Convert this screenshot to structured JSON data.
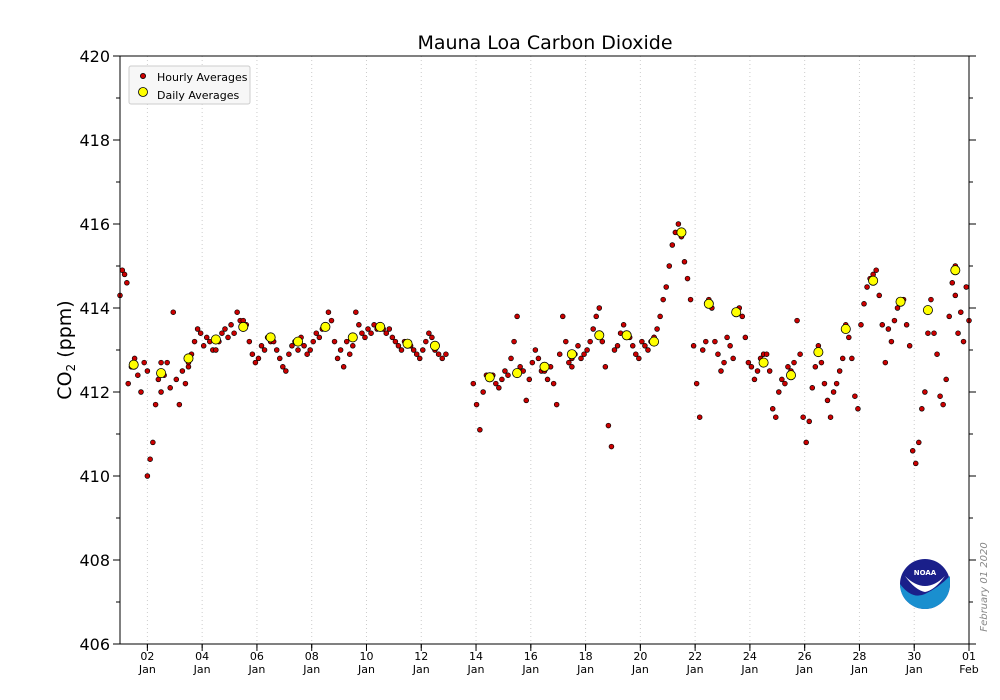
{
  "chart_data": {
    "type": "scatter",
    "title": "Mauna Loa Carbon Dioxide",
    "ylabel_main": "CO",
    "ylabel_sub": "2",
    "ylabel_unit": " (ppm)",
    "ylim": [
      406,
      420
    ],
    "xlim": [
      1,
      32
    ],
    "yticks": [
      406,
      408,
      410,
      412,
      414,
      416,
      418,
      420
    ],
    "xticks": [
      {
        "x": 2,
        "day": "02",
        "month": "Jan"
      },
      {
        "x": 4,
        "day": "04",
        "month": "Jan"
      },
      {
        "x": 6,
        "day": "06",
        "month": "Jan"
      },
      {
        "x": 8,
        "day": "08",
        "month": "Jan"
      },
      {
        "x": 10,
        "day": "10",
        "month": "Jan"
      },
      {
        "x": 12,
        "day": "12",
        "month": "Jan"
      },
      {
        "x": 14,
        "day": "14",
        "month": "Jan"
      },
      {
        "x": 16,
        "day": "16",
        "month": "Jan"
      },
      {
        "x": 18,
        "day": "18",
        "month": "Jan"
      },
      {
        "x": 20,
        "day": "20",
        "month": "Jan"
      },
      {
        "x": 22,
        "day": "22",
        "month": "Jan"
      },
      {
        "x": 24,
        "day": "24",
        "month": "Jan"
      },
      {
        "x": 26,
        "day": "26",
        "month": "Jan"
      },
      {
        "x": 28,
        "day": "28",
        "month": "Jan"
      },
      {
        "x": 30,
        "day": "30",
        "month": "Jan"
      },
      {
        "x": 32,
        "day": "01",
        "month": "Feb"
      }
    ],
    "legend": [
      {
        "name": "Hourly Averages",
        "color": "#cc0000"
      },
      {
        "name": "Daily Averages",
        "color": "#ffff00"
      }
    ],
    "legend_position": "top-left",
    "daily_averages": {
      "x": [
        1.5,
        2.5,
        3.5,
        4.5,
        5.5,
        6.5,
        7.5,
        8.5,
        9.5,
        10.5,
        11.5,
        12.5,
        14.5,
        15.5,
        16.5,
        17.5,
        18.5,
        19.5,
        20.5,
        21.5,
        22.5,
        23.5,
        24.5,
        25.5,
        26.5,
        27.5,
        28.5,
        29.5,
        30.5,
        31.5
      ],
      "y": [
        412.65,
        412.45,
        412.8,
        413.25,
        413.55,
        413.3,
        413.2,
        413.55,
        413.3,
        413.55,
        413.15,
        413.1,
        412.35,
        412.45,
        412.6,
        412.9,
        413.35,
        413.35,
        413.2,
        415.8,
        414.1,
        413.9,
        412.7,
        412.4,
        412.95,
        413.5,
        414.65,
        414.15,
        413.95,
        414.9
      ]
    },
    "hourly_series": [
      {
        "start": 1.0,
        "end": 1.25,
        "y": [
          414.3,
          414.9,
          414.8,
          414.6
        ]
      },
      {
        "start": 1.3,
        "end": 2.0,
        "y": [
          412.2,
          412.6,
          412.8,
          412.4,
          412.0,
          412.7,
          412.5
        ]
      },
      {
        "start": 2.0,
        "end": 2.5,
        "y": [
          410.0,
          410.4,
          410.8,
          411.7,
          412.3,
          412.7
        ]
      },
      {
        "start": 2.5,
        "end": 3.5,
        "y": [
          412.0,
          412.4,
          412.7,
          412.1,
          413.9,
          412.3,
          411.7,
          412.5,
          412.2,
          412.6
        ]
      },
      {
        "start": 3.5,
        "end": 4.5,
        "y": [
          412.7,
          412.9,
          413.2,
          413.5,
          413.4,
          413.1,
          413.3,
          413.2,
          413.0,
          413.3
        ]
      },
      {
        "start": 4.5,
        "end": 5.5,
        "y": [
          413.0,
          413.2,
          413.4,
          413.5,
          413.3,
          413.6,
          413.4,
          413.9,
          413.7,
          413.5
        ]
      },
      {
        "start": 5.5,
        "end": 6.5,
        "y": [
          413.7,
          413.6,
          413.2,
          412.9,
          412.7,
          412.8,
          413.1,
          413.0,
          413.3,
          413.2
        ]
      },
      {
        "start": 6.5,
        "end": 7.5,
        "y": [
          413.3,
          413.2,
          413.0,
          412.8,
          412.6,
          412.5,
          412.9,
          413.1,
          413.2,
          413.0
        ]
      },
      {
        "start": 7.5,
        "end": 8.5,
        "y": [
          413.2,
          413.3,
          413.1,
          412.9,
          413.0,
          413.2,
          413.4,
          413.3,
          413.5,
          413.6
        ]
      },
      {
        "start": 8.5,
        "end": 9.5,
        "y": [
          413.6,
          413.9,
          413.7,
          413.2,
          412.8,
          413.0,
          412.6,
          413.2,
          412.9,
          413.1
        ]
      },
      {
        "start": 9.5,
        "end": 10.5,
        "y": [
          413.3,
          413.9,
          413.6,
          413.4,
          413.3,
          413.5,
          413.4,
          413.6,
          413.5,
          413.6
        ]
      },
      {
        "start": 10.5,
        "end": 11.5,
        "y": [
          413.6,
          413.5,
          413.4,
          413.5,
          413.3,
          413.2,
          413.1,
          413.0,
          413.2,
          413.1
        ]
      },
      {
        "start": 11.5,
        "end": 12.5,
        "y": [
          413.2,
          413.1,
          413.0,
          412.9,
          412.8,
          413.0,
          413.2,
          413.4,
          413.3,
          413.1
        ]
      },
      {
        "start": 12.5,
        "end": 12.9,
        "y": [
          413.0,
          412.9,
          412.8,
          412.9
        ]
      },
      {
        "start": 13.9,
        "end": 14.5,
        "y": [
          412.2,
          411.7,
          411.1,
          412.0,
          412.4,
          412.3
        ]
      },
      {
        "start": 14.5,
        "end": 15.5,
        "y": [
          412.3,
          412.4,
          412.2,
          412.1,
          412.3,
          412.5,
          412.4,
          412.8,
          413.2,
          413.8
        ]
      },
      {
        "start": 15.5,
        "end": 16.5,
        "y": [
          412.4,
          412.6,
          412.5,
          411.8,
          412.3,
          412.7,
          413.0,
          412.8,
          412.5,
          412.6
        ]
      },
      {
        "start": 16.5,
        "end": 17.5,
        "y": [
          412.5,
          412.3,
          412.6,
          412.2,
          411.7,
          412.9,
          413.8,
          413.2,
          412.7,
          412.8
        ]
      },
      {
        "start": 17.5,
        "end": 18.5,
        "y": [
          412.6,
          412.9,
          413.1,
          412.8,
          412.9,
          413.0,
          413.2,
          413.5,
          413.8,
          414.0
        ]
      },
      {
        "start": 18.5,
        "end": 19.5,
        "y": [
          413.4,
          413.2,
          412.6,
          411.2,
          410.7,
          413.0,
          413.1,
          413.4,
          413.6,
          413.3
        ]
      },
      {
        "start": 19.5,
        "end": 20.5,
        "y": [
          413.4,
          413.3,
          413.1,
          412.9,
          412.8,
          413.2,
          413.1,
          413.0,
          413.2,
          413.3
        ]
      },
      {
        "start": 20.5,
        "end": 21.5,
        "y": [
          413.3,
          413.5,
          413.8,
          414.2,
          414.5,
          415.0,
          415.5,
          415.8,
          416.0,
          415.7
        ]
      },
      {
        "start": 21.5,
        "end": 22.5,
        "y": [
          415.7,
          415.1,
          414.7,
          414.2,
          413.1,
          412.2,
          411.4,
          413.0,
          413.2,
          414.2
        ]
      },
      {
        "start": 22.5,
        "end": 23.5,
        "y": [
          414.1,
          414.0,
          413.2,
          412.9,
          412.5,
          412.7,
          413.3,
          413.1,
          412.8,
          413.9
        ]
      },
      {
        "start": 23.5,
        "end": 24.5,
        "y": [
          413.9,
          414.0,
          413.8,
          413.3,
          412.7,
          412.6,
          412.3,
          412.5,
          412.8,
          412.9
        ]
      },
      {
        "start": 24.5,
        "end": 25.5,
        "y": [
          412.7,
          412.9,
          412.5,
          411.6,
          411.4,
          412.0,
          412.3,
          412.2,
          412.6,
          412.5
        ]
      },
      {
        "start": 25.5,
        "end": 26.5,
        "y": [
          412.4,
          412.7,
          413.7,
          412.9,
          411.4,
          410.8,
          411.3,
          412.1,
          412.6,
          413.1
        ]
      },
      {
        "start": 26.5,
        "end": 27.5,
        "y": [
          412.9,
          412.7,
          412.2,
          411.8,
          411.4,
          412.0,
          412.2,
          412.5,
          412.8,
          413.6
        ]
      },
      {
        "start": 27.5,
        "end": 28.5,
        "y": [
          413.5,
          413.3,
          412.8,
          411.9,
          411.6,
          413.6,
          414.1,
          414.5,
          414.7,
          414.8
        ]
      },
      {
        "start": 28.5,
        "end": 29.5,
        "y": [
          414.6,
          414.9,
          414.3,
          413.6,
          412.7,
          413.5,
          413.2,
          413.7,
          414.0,
          414.1
        ]
      },
      {
        "start": 29.5,
        "end": 30.5,
        "y": [
          414.1,
          414.2,
          413.6,
          413.1,
          410.6,
          410.3,
          410.8,
          411.6,
          412.0,
          413.4
        ]
      },
      {
        "start": 30.5,
        "end": 31.5,
        "y": [
          413.9,
          414.2,
          413.4,
          412.9,
          411.9,
          411.7,
          412.3,
          413.8,
          414.6,
          415.0
        ]
      },
      {
        "start": 31.5,
        "end": 32.0,
        "y": [
          414.3,
          413.4,
          413.9,
          413.2,
          414.5,
          413.7
        ]
      }
    ]
  },
  "logo": {
    "text": "NOAA"
  },
  "credit": "February 01 2020"
}
